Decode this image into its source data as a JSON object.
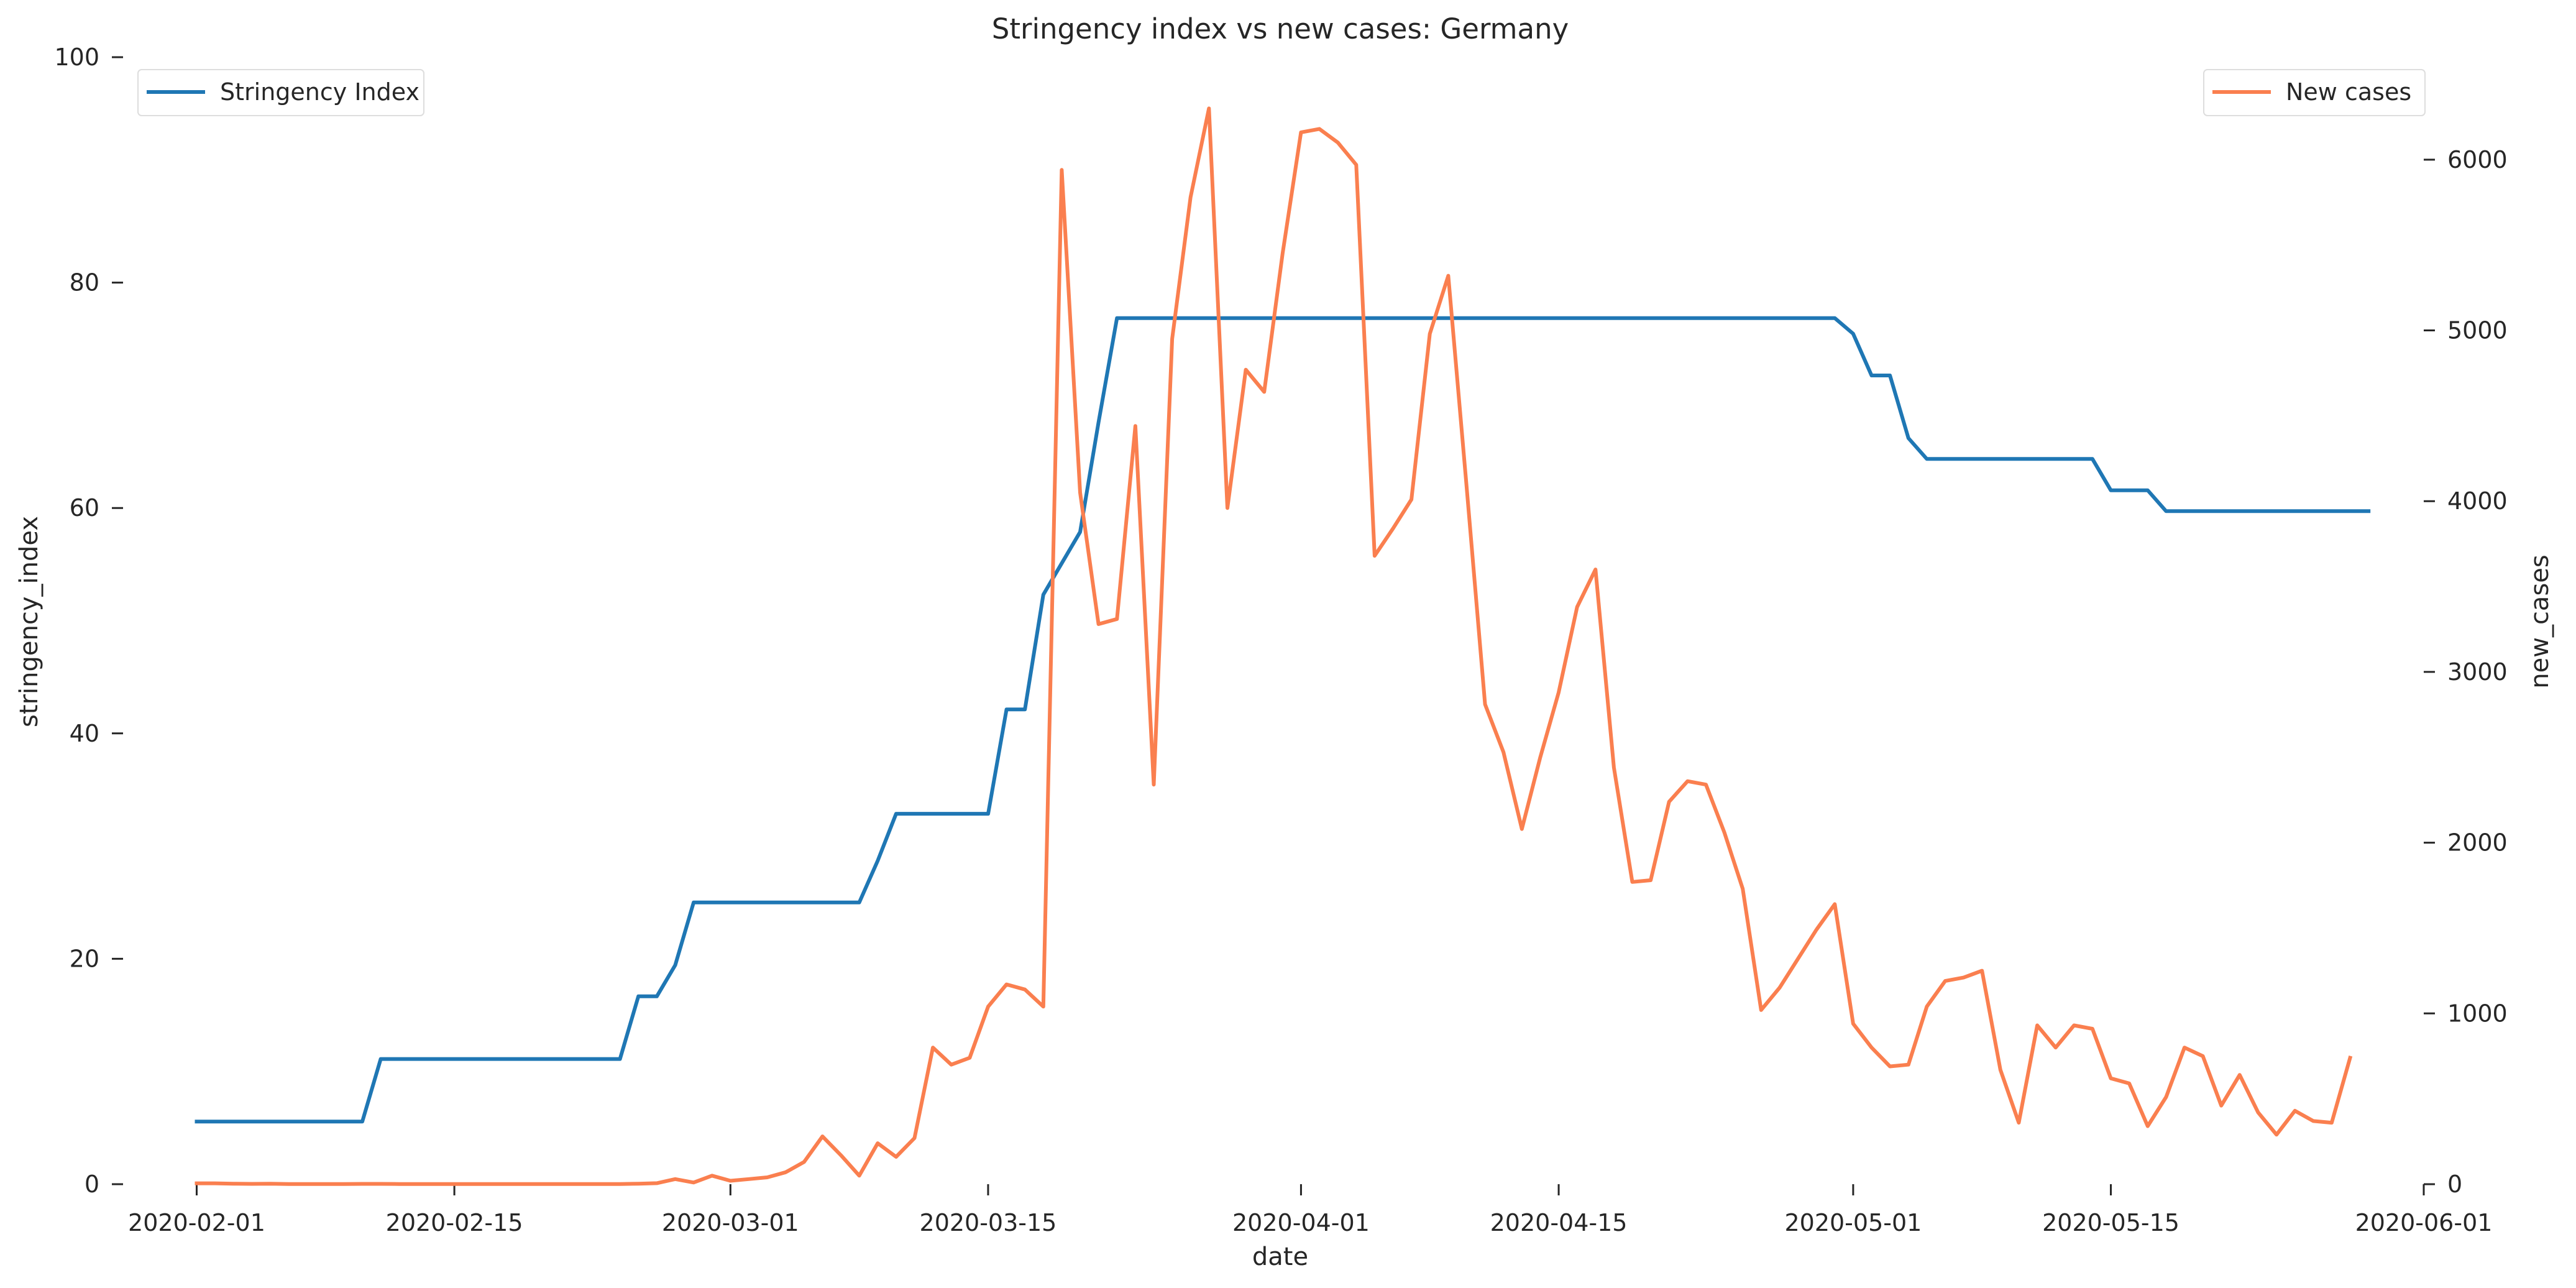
{
  "chart_data": {
    "type": "line",
    "title": "Stringency index vs new cases:  Germany",
    "xlabel": "date",
    "ylabel_left": "stringency_index",
    "ylabel_right": "new_cases",
    "x_range": [
      "2020-01-28",
      "2020-06-01"
    ],
    "ylim_left": [
      0,
      100
    ],
    "ylim_right": [
      0,
      6600
    ],
    "x_tick_labels": [
      "2020-02-01",
      "2020-02-15",
      "2020-03-01",
      "2020-03-15",
      "2020-04-01",
      "2020-04-15",
      "2020-05-01",
      "2020-05-15",
      "2020-06-01"
    ],
    "y_left_tick_labels": [
      "0",
      "20",
      "40",
      "60",
      "80",
      "100"
    ],
    "y_right_tick_labels": [
      "0",
      "1000",
      "2000",
      "3000",
      "4000",
      "5000",
      "6000"
    ],
    "grid": false,
    "legend_left_placement": "top-left",
    "legend_right_placement": "top-right",
    "series": [
      {
        "name": "Stringency Index",
        "axis": "left",
        "color": "#1f77b4",
        "points": [
          [
            "2020-02-01",
            5.56
          ],
          [
            "2020-02-10",
            5.56
          ],
          [
            "2020-02-11",
            11.11
          ],
          [
            "2020-02-24",
            11.11
          ],
          [
            "2020-02-25",
            16.67
          ],
          [
            "2020-02-26",
            16.67
          ],
          [
            "2020-02-27",
            19.44
          ],
          [
            "2020-02-28",
            25.0
          ],
          [
            "2020-03-08",
            25.0
          ],
          [
            "2020-03-09",
            28.7
          ],
          [
            "2020-03-10",
            32.87
          ],
          [
            "2020-03-15",
            32.87
          ],
          [
            "2020-03-16",
            42.13
          ],
          [
            "2020-03-17",
            42.13
          ],
          [
            "2020-03-18",
            52.31
          ],
          [
            "2020-03-19",
            55.09
          ],
          [
            "2020-03-20",
            57.87
          ],
          [
            "2020-03-21",
            67.59
          ],
          [
            "2020-03-22",
            76.85
          ],
          [
            "2020-04-30",
            76.85
          ],
          [
            "2020-05-01",
            75.46
          ],
          [
            "2020-05-02",
            71.76
          ],
          [
            "2020-05-03",
            71.76
          ],
          [
            "2020-05-04",
            66.2
          ],
          [
            "2020-05-05",
            64.35
          ],
          [
            "2020-05-14",
            64.35
          ],
          [
            "2020-05-15",
            61.57
          ],
          [
            "2020-05-17",
            61.57
          ],
          [
            "2020-05-18",
            59.72
          ],
          [
            "2020-05-29",
            59.72
          ]
        ]
      },
      {
        "name": "New cases",
        "axis": "right",
        "color": "#fa7f4f",
        "points": [
          [
            "2020-02-01",
            5
          ],
          [
            "2020-02-02",
            5
          ],
          [
            "2020-02-03",
            3
          ],
          [
            "2020-02-04",
            2
          ],
          [
            "2020-02-05",
            3
          ],
          [
            "2020-02-06",
            1
          ],
          [
            "2020-02-07",
            1
          ],
          [
            "2020-02-08",
            1
          ],
          [
            "2020-02-09",
            1
          ],
          [
            "2020-02-10",
            2
          ],
          [
            "2020-02-11",
            2
          ],
          [
            "2020-02-12",
            1
          ],
          [
            "2020-02-13",
            1
          ],
          [
            "2020-02-14",
            1
          ],
          [
            "2020-02-15",
            1
          ],
          [
            "2020-02-16",
            1
          ],
          [
            "2020-02-17",
            1
          ],
          [
            "2020-02-18",
            1
          ],
          [
            "2020-02-19",
            1
          ],
          [
            "2020-02-20",
            1
          ],
          [
            "2020-02-21",
            1
          ],
          [
            "2020-02-22",
            1
          ],
          [
            "2020-02-23",
            1
          ],
          [
            "2020-02-24",
            1
          ],
          [
            "2020-02-25",
            3
          ],
          [
            "2020-02-26",
            6
          ],
          [
            "2020-02-27",
            30
          ],
          [
            "2020-02-28",
            10
          ],
          [
            "2020-02-29",
            50
          ],
          [
            "2020-03-01",
            20
          ],
          [
            "2020-03-02",
            30
          ],
          [
            "2020-03-03",
            40
          ],
          [
            "2020-03-04",
            70
          ],
          [
            "2020-03-05",
            130
          ],
          [
            "2020-03-06",
            280
          ],
          [
            "2020-03-07",
            170
          ],
          [
            "2020-03-08",
            50
          ],
          [
            "2020-03-09",
            240
          ],
          [
            "2020-03-10",
            160
          ],
          [
            "2020-03-11",
            270
          ],
          [
            "2020-03-12",
            800
          ],
          [
            "2020-03-13",
            700
          ],
          [
            "2020-03-14",
            740
          ],
          [
            "2020-03-15",
            1040
          ],
          [
            "2020-03-16",
            1170
          ],
          [
            "2020-03-17",
            1140
          ],
          [
            "2020-03-18",
            1040
          ],
          [
            "2020-03-19",
            5940
          ],
          [
            "2020-03-20",
            4050
          ],
          [
            "2020-03-21",
            3280
          ],
          [
            "2020-03-22",
            3310
          ],
          [
            "2020-03-23",
            4440
          ],
          [
            "2020-03-24",
            2340
          ],
          [
            "2020-03-25",
            4950
          ],
          [
            "2020-03-26",
            5780
          ],
          [
            "2020-03-27",
            6300
          ],
          [
            "2020-03-28",
            3960
          ],
          [
            "2020-03-29",
            4770
          ],
          [
            "2020-03-30",
            4640
          ],
          [
            "2020-03-31",
            5450
          ],
          [
            "2020-04-01",
            6160
          ],
          [
            "2020-04-02",
            6180
          ],
          [
            "2020-04-03",
            6100
          ],
          [
            "2020-04-04",
            5970
          ],
          [
            "2020-04-05",
            3680
          ],
          [
            "2020-04-06",
            3840
          ],
          [
            "2020-04-07",
            4010
          ],
          [
            "2020-04-08",
            4980
          ],
          [
            "2020-04-09",
            5320
          ],
          [
            "2020-04-10",
            4080
          ],
          [
            "2020-04-11",
            2810
          ],
          [
            "2020-04-12",
            2530
          ],
          [
            "2020-04-13",
            2080
          ],
          [
            "2020-04-14",
            2500
          ],
          [
            "2020-04-15",
            2880
          ],
          [
            "2020-04-16",
            3380
          ],
          [
            "2020-04-17",
            3600
          ],
          [
            "2020-04-18",
            2440
          ],
          [
            "2020-04-19",
            1770
          ],
          [
            "2020-04-20",
            1780
          ],
          [
            "2020-04-21",
            2240
          ],
          [
            "2020-04-22",
            2360
          ],
          [
            "2020-04-23",
            2340
          ],
          [
            "2020-04-24",
            2060
          ],
          [
            "2020-04-25",
            1730
          ],
          [
            "2020-04-26",
            1020
          ],
          [
            "2020-04-27",
            1150
          ],
          [
            "2020-04-28",
            1320
          ],
          [
            "2020-04-29",
            1490
          ],
          [
            "2020-04-30",
            1640
          ],
          [
            "2020-05-01",
            940
          ],
          [
            "2020-05-02",
            800
          ],
          [
            "2020-05-03",
            690
          ],
          [
            "2020-05-04",
            700
          ],
          [
            "2020-05-05",
            1040
          ],
          [
            "2020-05-06",
            1190
          ],
          [
            "2020-05-07",
            1210
          ],
          [
            "2020-05-08",
            1250
          ],
          [
            "2020-05-09",
            670
          ],
          [
            "2020-05-10",
            360
          ],
          [
            "2020-05-11",
            930
          ],
          [
            "2020-05-12",
            800
          ],
          [
            "2020-05-13",
            930
          ],
          [
            "2020-05-14",
            910
          ],
          [
            "2020-05-15",
            620
          ],
          [
            "2020-05-16",
            590
          ],
          [
            "2020-05-17",
            340
          ],
          [
            "2020-05-18",
            510
          ],
          [
            "2020-05-19",
            800
          ],
          [
            "2020-05-20",
            750
          ],
          [
            "2020-05-21",
            460
          ],
          [
            "2020-05-22",
            640
          ],
          [
            "2020-05-23",
            420
          ],
          [
            "2020-05-24",
            290
          ],
          [
            "2020-05-25",
            430
          ],
          [
            "2020-05-26",
            370
          ],
          [
            "2020-05-27",
            360
          ],
          [
            "2020-05-28",
            740
          ]
        ]
      }
    ]
  }
}
